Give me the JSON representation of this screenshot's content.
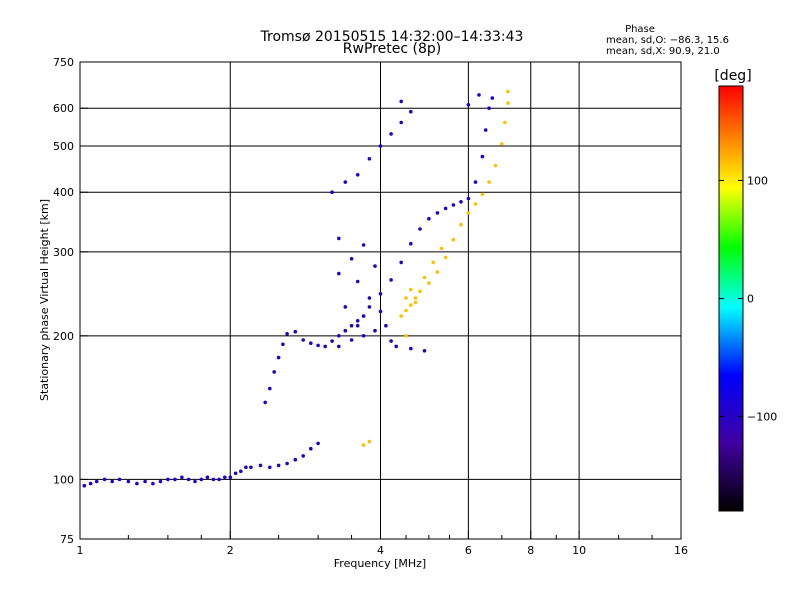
{
  "chart_data": {
    "type": "scatter",
    "title": "Tromsø 20150515 14:32:00–14:33:43",
    "subtitle": "RwPretec (8p)",
    "xlabel": "Frequency [MHz]",
    "ylabel": "Stationary phase Virtual Height [km]",
    "x_scale": "log",
    "y_scale": "log",
    "xlim": [
      1,
      16
    ],
    "ylim": [
      75,
      750
    ],
    "x_ticks": [
      1,
      2,
      4,
      6,
      8,
      10,
      16
    ],
    "x_tick_labels": [
      "1",
      "2",
      "4",
      "6",
      "8",
      "10",
      "16"
    ],
    "x_minor_ticks": [
      1.25,
      1.5,
      1.75,
      2.5,
      3,
      3.5,
      4.5,
      5,
      5.5,
      7,
      9,
      12,
      14
    ],
    "y_ticks": [
      75,
      100,
      200,
      300,
      400,
      500,
      600,
      750
    ],
    "y_tick_labels": [
      "75",
      "100",
      "200",
      "300",
      "400",
      "500",
      "600",
      "750"
    ],
    "grid": true,
    "stats": {
      "heading": "Phase",
      "o_line": "mean, sd,O: −86.3, 15.6",
      "x_line": "mean, sd,X:  90.9, 21.0"
    },
    "colorbar": {
      "label": "[deg]",
      "range": [
        -180,
        180
      ],
      "ticks": [
        100,
        0,
        -100
      ],
      "tick_labels": [
        "100",
        "0",
        "−100"
      ]
    },
    "series": [
      {
        "name": "O",
        "color_phase": -95,
        "points": [
          [
            1.02,
            97
          ],
          [
            1.05,
            98
          ],
          [
            1.08,
            99
          ],
          [
            1.12,
            100
          ],
          [
            1.16,
            99
          ],
          [
            1.2,
            100
          ],
          [
            1.25,
            99
          ],
          [
            1.3,
            98
          ],
          [
            1.35,
            99
          ],
          [
            1.4,
            98
          ],
          [
            1.45,
            99
          ],
          [
            1.5,
            100
          ],
          [
            1.55,
            100
          ],
          [
            1.6,
            101
          ],
          [
            1.65,
            100
          ],
          [
            1.7,
            99
          ],
          [
            1.75,
            100
          ],
          [
            1.8,
            101
          ],
          [
            1.85,
            100
          ],
          [
            1.9,
            100
          ],
          [
            1.95,
            101
          ],
          [
            2.0,
            101
          ],
          [
            2.05,
            103
          ],
          [
            2.1,
            104
          ],
          [
            2.15,
            106
          ],
          [
            2.2,
            106
          ],
          [
            2.3,
            107
          ],
          [
            2.4,
            106
          ],
          [
            2.5,
            107
          ],
          [
            2.6,
            108
          ],
          [
            2.7,
            110
          ],
          [
            2.8,
            112
          ],
          [
            2.9,
            116
          ],
          [
            3.0,
            119
          ],
          [
            2.35,
            145
          ],
          [
            2.4,
            155
          ],
          [
            2.45,
            168
          ],
          [
            2.5,
            180
          ],
          [
            2.55,
            192
          ],
          [
            2.6,
            202
          ],
          [
            2.7,
            204
          ],
          [
            2.8,
            196
          ],
          [
            2.9,
            193
          ],
          [
            3.0,
            191
          ],
          [
            3.1,
            190
          ],
          [
            3.2,
            195
          ],
          [
            3.3,
            200
          ],
          [
            3.4,
            205
          ],
          [
            3.5,
            210
          ],
          [
            3.6,
            215
          ],
          [
            3.7,
            220
          ],
          [
            3.8,
            230
          ],
          [
            4.0,
            245
          ],
          [
            4.2,
            262
          ],
          [
            4.4,
            285
          ],
          [
            4.6,
            312
          ],
          [
            4.8,
            335
          ],
          [
            5.0,
            352
          ],
          [
            5.2,
            362
          ],
          [
            5.4,
            370
          ],
          [
            5.6,
            376
          ],
          [
            5.8,
            382
          ],
          [
            6.0,
            388
          ],
          [
            6.2,
            420
          ],
          [
            6.4,
            475
          ],
          [
            6.5,
            540
          ],
          [
            6.6,
            600
          ],
          [
            6.7,
            630
          ],
          [
            3.3,
            270
          ],
          [
            3.3,
            320
          ],
          [
            3.4,
            230
          ],
          [
            3.5,
            290
          ],
          [
            3.6,
            260
          ],
          [
            3.7,
            310
          ],
          [
            3.8,
            240
          ],
          [
            3.9,
            280
          ],
          [
            3.5,
            196
          ],
          [
            3.7,
            200
          ],
          [
            3.9,
            205
          ],
          [
            4.1,
            210
          ],
          [
            4.3,
            190
          ],
          [
            4.6,
            188
          ],
          [
            4.9,
            186
          ],
          [
            3.3,
            190
          ],
          [
            3.6,
            210
          ],
          [
            4.0,
            225
          ],
          [
            4.2,
            195
          ],
          [
            3.2,
            400
          ],
          [
            3.4,
            420
          ],
          [
            3.6,
            435
          ],
          [
            3.8,
            470
          ],
          [
            4.0,
            500
          ],
          [
            4.2,
            530
          ],
          [
            4.4,
            560
          ],
          [
            4.6,
            590
          ],
          [
            4.4,
            620
          ],
          [
            6.0,
            610
          ],
          [
            6.3,
            640
          ]
        ]
      },
      {
        "name": "X",
        "color_phase": 110,
        "points": [
          [
            4.4,
            220
          ],
          [
            4.5,
            226
          ],
          [
            4.6,
            232
          ],
          [
            4.7,
            240
          ],
          [
            4.8,
            248
          ],
          [
            5.0,
            258
          ],
          [
            5.2,
            272
          ],
          [
            5.4,
            292
          ],
          [
            5.6,
            318
          ],
          [
            5.8,
            342
          ],
          [
            6.0,
            362
          ],
          [
            6.2,
            378
          ],
          [
            6.4,
            396
          ],
          [
            6.6,
            420
          ],
          [
            6.8,
            455
          ],
          [
            7.0,
            505
          ],
          [
            7.1,
            560
          ],
          [
            7.2,
            615
          ],
          [
            7.2,
            650
          ],
          [
            4.5,
            240
          ],
          [
            4.6,
            250
          ],
          [
            4.7,
            235
          ],
          [
            4.9,
            265
          ],
          [
            5.1,
            285
          ],
          [
            5.3,
            305
          ],
          [
            4.5,
            200
          ],
          [
            3.8,
            120
          ],
          [
            3.7,
            118
          ]
        ]
      }
    ]
  }
}
